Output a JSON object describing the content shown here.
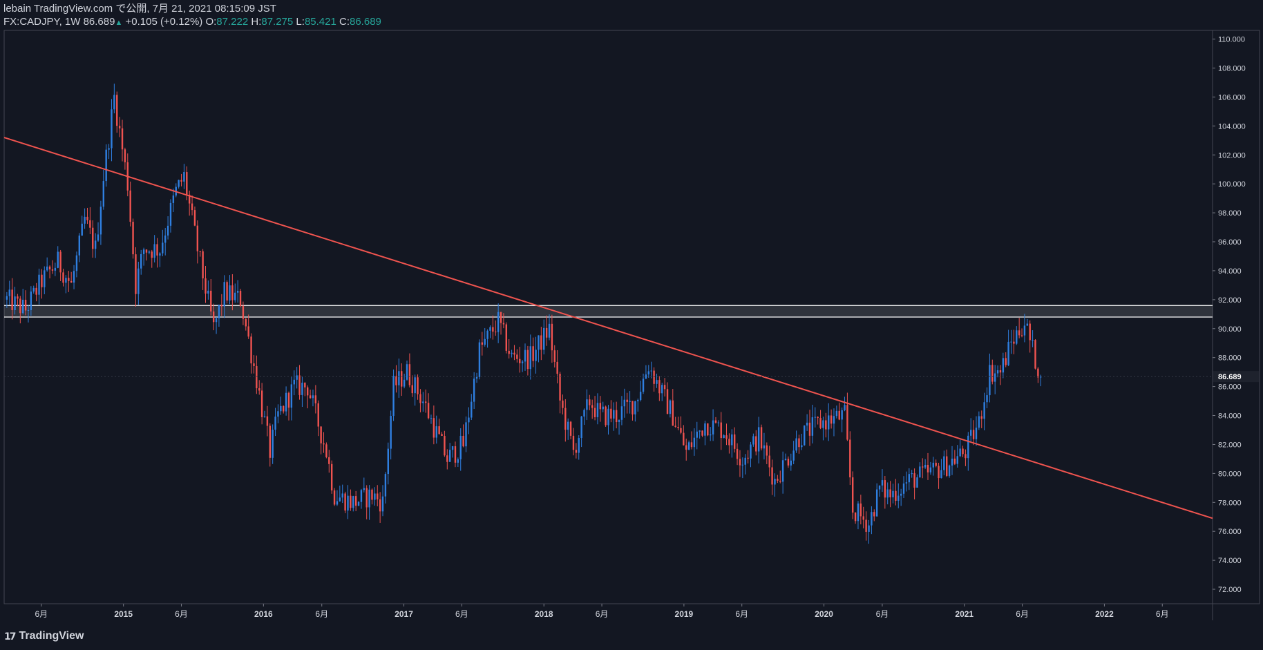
{
  "header": {
    "line1": "lebain TradingView.com で公開, 7月 21, 2021 08:15:09 JST",
    "symbol": "FX:CADJPY, 1W 86.689",
    "change": "+0.105 (+0.12%)",
    "o_label": "O:",
    "o_value": "87.222",
    "h_label": "H:",
    "h_value": "87.275",
    "l_label": "L:",
    "l_value": "85.421",
    "c_label": "C:",
    "c_value": "86.689"
  },
  "logo": {
    "text": "TradingView"
  },
  "colors": {
    "bg": "#131722",
    "up": "#2f7fe0",
    "down": "#ef5350",
    "trend": "#f0544f",
    "zone": "#ffffff",
    "axis_text": "#d1d4dc"
  },
  "chart_data": {
    "type": "candlestick",
    "symbol": "FX:CADJPY",
    "interval": "1W",
    "ylim": [
      71.0,
      110.6
    ],
    "xlim": [
      "2014-02-24",
      "2022-10-10"
    ],
    "y_ticks": [
      "72.000",
      "74.000",
      "76.000",
      "78.000",
      "80.000",
      "82.000",
      "84.000",
      "86.000",
      "88.000",
      "90.000",
      "92.000",
      "94.000",
      "96.000",
      "98.000",
      "100.000",
      "102.000",
      "104.000",
      "106.000",
      "108.000",
      "110.000"
    ],
    "x_ticks": [
      {
        "date": "2014-06-01",
        "label": "6月"
      },
      {
        "date": "2015-01-01",
        "label": "2015"
      },
      {
        "date": "2015-06-01",
        "label": "6月"
      },
      {
        "date": "2016-01-01",
        "label": "2016"
      },
      {
        "date": "2016-06-01",
        "label": "6月"
      },
      {
        "date": "2017-01-01",
        "label": "2017"
      },
      {
        "date": "2017-06-01",
        "label": "6月"
      },
      {
        "date": "2018-01-01",
        "label": "2018"
      },
      {
        "date": "2018-06-01",
        "label": "6月"
      },
      {
        "date": "2019-01-01",
        "label": "2019"
      },
      {
        "date": "2019-06-01",
        "label": "6月"
      },
      {
        "date": "2020-01-01",
        "label": "2020"
      },
      {
        "date": "2020-06-01",
        "label": "6月"
      },
      {
        "date": "2021-01-01",
        "label": "2021"
      },
      {
        "date": "2021-06-01",
        "label": "6月"
      },
      {
        "date": "2022-01-01",
        "label": "2022"
      },
      {
        "date": "2022-06-01",
        "label": "6月"
      }
    ],
    "last_price": {
      "value": 86.689,
      "label": "86.689"
    },
    "trend_line": {
      "start": {
        "date": "2014-02-24",
        "value": 103.2
      },
      "end": {
        "date": "2022-10-10",
        "value": 76.9
      }
    },
    "zone": {
      "top": 91.6,
      "bottom": 90.8,
      "start": "2014-02-24",
      "end": "2022-10-10"
    },
    "anchors": [
      {
        "date": "2014-03-03",
        "value": 92.0
      },
      {
        "date": "2014-04-21",
        "value": 91.3
      },
      {
        "date": "2014-06-02",
        "value": 93.3
      },
      {
        "date": "2014-07-14",
        "value": 94.6
      },
      {
        "date": "2014-08-18",
        "value": 93.0
      },
      {
        "date": "2014-09-22",
        "value": 97.5
      },
      {
        "date": "2014-10-20",
        "value": 95.5
      },
      {
        "date": "2014-11-10",
        "value": 100.5
      },
      {
        "date": "2014-12-08",
        "value": 106.0
      },
      {
        "date": "2015-01-12",
        "value": 100.0
      },
      {
        "date": "2015-02-02",
        "value": 93.0
      },
      {
        "date": "2015-02-23",
        "value": 95.5
      },
      {
        "date": "2015-04-06",
        "value": 95.5
      },
      {
        "date": "2015-05-18",
        "value": 99.5
      },
      {
        "date": "2015-06-08",
        "value": 100.5
      },
      {
        "date": "2015-07-13",
        "value": 95.5
      },
      {
        "date": "2015-08-24",
        "value": 90.0
      },
      {
        "date": "2015-09-21",
        "value": 92.5
      },
      {
        "date": "2015-11-02",
        "value": 92.0
      },
      {
        "date": "2015-12-14",
        "value": 86.5
      },
      {
        "date": "2016-01-18",
        "value": 81.5
      },
      {
        "date": "2016-02-08",
        "value": 84.0
      },
      {
        "date": "2016-03-21",
        "value": 86.0
      },
      {
        "date": "2016-04-25",
        "value": 86.0
      },
      {
        "date": "2016-06-13",
        "value": 81.5
      },
      {
        "date": "2016-07-04",
        "value": 78.5
      },
      {
        "date": "2016-08-22",
        "value": 78.0
      },
      {
        "date": "2016-10-10",
        "value": 78.5
      },
      {
        "date": "2016-11-07",
        "value": 78.0
      },
      {
        "date": "2016-12-05",
        "value": 86.0
      },
      {
        "date": "2017-01-09",
        "value": 87.0
      },
      {
        "date": "2017-02-20",
        "value": 85.0
      },
      {
        "date": "2017-04-24",
        "value": 81.0
      },
      {
        "date": "2017-06-05",
        "value": 82.0
      },
      {
        "date": "2017-07-17",
        "value": 88.5
      },
      {
        "date": "2017-09-04",
        "value": 90.5
      },
      {
        "date": "2017-10-09",
        "value": 88.0
      },
      {
        "date": "2017-11-27",
        "value": 88.0
      },
      {
        "date": "2018-01-15",
        "value": 90.0
      },
      {
        "date": "2018-02-12",
        "value": 85.0
      },
      {
        "date": "2018-03-19",
        "value": 81.5
      },
      {
        "date": "2018-04-30",
        "value": 85.0
      },
      {
        "date": "2018-05-28",
        "value": 84.0
      },
      {
        "date": "2018-07-09",
        "value": 84.0
      },
      {
        "date": "2018-08-27",
        "value": 85.0
      },
      {
        "date": "2018-10-01",
        "value": 87.5
      },
      {
        "date": "2018-11-05",
        "value": 85.5
      },
      {
        "date": "2018-12-03",
        "value": 84.0
      },
      {
        "date": "2019-01-07",
        "value": 81.5
      },
      {
        "date": "2019-02-25",
        "value": 83.5
      },
      {
        "date": "2019-04-15",
        "value": 83.0
      },
      {
        "date": "2019-06-03",
        "value": 81.0
      },
      {
        "date": "2019-07-15",
        "value": 82.5
      },
      {
        "date": "2019-08-26",
        "value": 79.5
      },
      {
        "date": "2019-10-28",
        "value": 82.5
      },
      {
        "date": "2019-12-23",
        "value": 83.5
      },
      {
        "date": "2020-02-24",
        "value": 84.0
      },
      {
        "date": "2020-03-16",
        "value": 77.5
      },
      {
        "date": "2020-04-27",
        "value": 76.5
      },
      {
        "date": "2020-05-25",
        "value": 79.0
      },
      {
        "date": "2020-06-22",
        "value": 78.5
      },
      {
        "date": "2020-08-10",
        "value": 79.5
      },
      {
        "date": "2020-09-28",
        "value": 80.0
      },
      {
        "date": "2020-11-09",
        "value": 80.5
      },
      {
        "date": "2021-01-04",
        "value": 81.5
      },
      {
        "date": "2021-02-08",
        "value": 83.5
      },
      {
        "date": "2021-03-08",
        "value": 87.0
      },
      {
        "date": "2021-04-05",
        "value": 87.0
      },
      {
        "date": "2021-05-03",
        "value": 89.0
      },
      {
        "date": "2021-06-07",
        "value": 90.5
      },
      {
        "date": "2021-06-28",
        "value": 88.5
      },
      {
        "date": "2021-07-19",
        "value": 86.7
      }
    ]
  }
}
